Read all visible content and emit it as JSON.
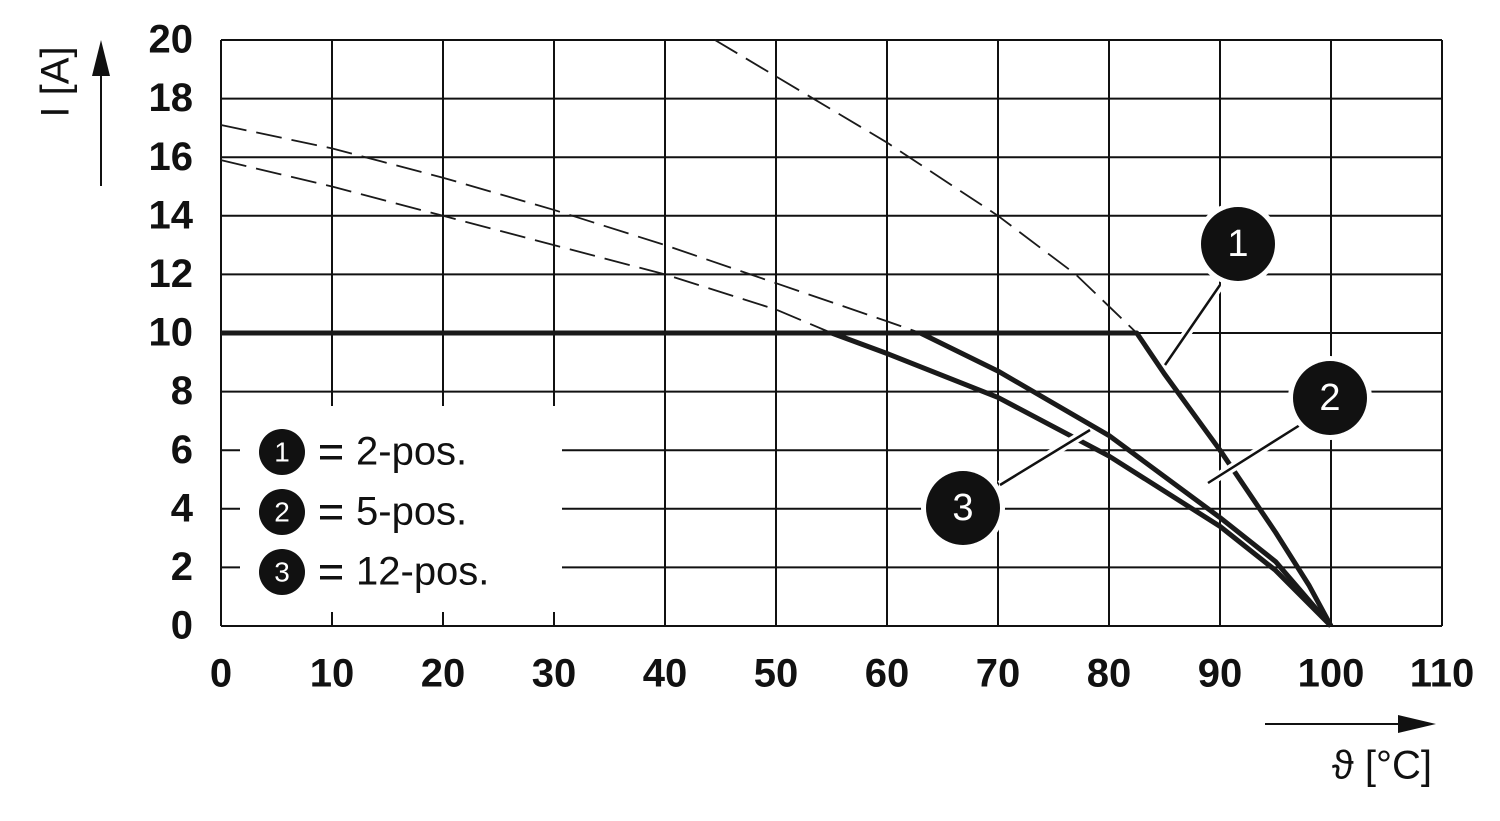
{
  "chart_data": {
    "type": "line",
    "xlabel": "ϑ [°C]",
    "ylabel": "I [A]",
    "xlim": [
      0,
      110
    ],
    "ylim": [
      0,
      20
    ],
    "xticks": [
      0,
      10,
      20,
      30,
      40,
      50,
      60,
      70,
      80,
      90,
      100,
      110
    ],
    "yticks": [
      0,
      2,
      4,
      6,
      8,
      10,
      12,
      14,
      16,
      18,
      20
    ],
    "grid": true,
    "series": [
      {
        "name": "2-pos.",
        "label": "1",
        "color": "#1a1a1a",
        "x": [
          0,
          82.5,
          85,
          90,
          95,
          98,
          100
        ],
        "values": [
          10,
          10,
          8.6,
          6,
          3.2,
          1.4,
          0
        ],
        "dashed": {
          "x": [
            44.5,
            60,
            70,
            77,
            82.5
          ],
          "values": [
            20,
            16.5,
            14,
            12,
            10
          ]
        }
      },
      {
        "name": "5-pos.",
        "label": "2",
        "color": "#1a1a1a",
        "x": [
          0,
          63,
          70,
          80,
          90,
          95,
          100
        ],
        "values": [
          10,
          10,
          8.7,
          6.5,
          3.7,
          2.2,
          0
        ],
        "dashed": {
          "x": [
            0,
            10,
            20,
            30,
            40,
            50,
            60,
            63
          ],
          "values": [
            17.1,
            16.3,
            15.3,
            14.2,
            13,
            11.7,
            10.4,
            10
          ]
        }
      },
      {
        "name": "12-pos.",
        "label": "3",
        "color": "#1a1a1a",
        "x": [
          0,
          55,
          60,
          70,
          80,
          90,
          95,
          100
        ],
        "values": [
          10,
          10,
          9.3,
          7.8,
          5.8,
          3.4,
          1.9,
          0
        ],
        "dashed": {
          "x": [
            0,
            10,
            20,
            30,
            40,
            50,
            55
          ],
          "values": [
            15.9,
            15,
            14,
            13,
            12,
            10.8,
            10
          ]
        }
      }
    ]
  }
}
